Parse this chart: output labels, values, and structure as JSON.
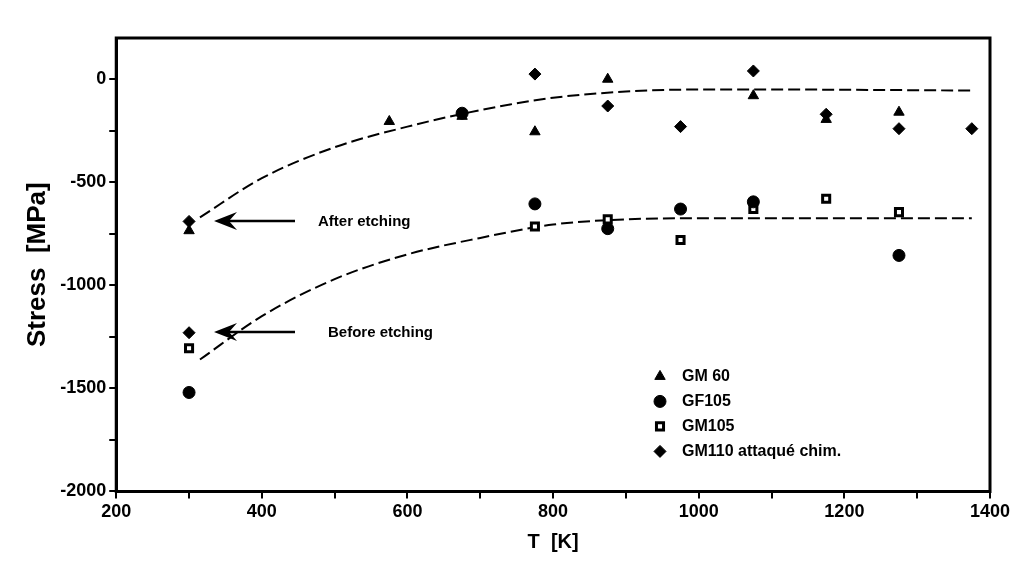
{
  "chart_data": {
    "type": "scatter",
    "xlabel": "T  [K]",
    "ylabel": "Stress  [MPa]",
    "xlim": [
      200,
      1400
    ],
    "xticks": [
      200,
      {
        "value": 300,
        "label": null
      },
      400,
      {
        "value": 500,
        "label": null
      },
      600,
      {
        "value": 700,
        "label": null
      },
      800,
      {
        "value": 900,
        "label": null
      },
      1000,
      {
        "value": 1100,
        "label": null
      },
      1200,
      {
        "value": 1300,
        "label": null
      },
      1400
    ],
    "ylim": [
      -2000,
      200
    ],
    "yticks": [
      -2000,
      {
        "value": -1750,
        "label": null
      },
      -1500,
      {
        "value": -1250,
        "label": null
      },
      -1000,
      {
        "value": -750,
        "label": null
      },
      -500,
      {
        "value": -250,
        "label": null
      },
      0
    ],
    "grid": false,
    "legend": "bottom right",
    "series": [
      {
        "name": "GM 60",
        "marker": "triangle",
        "color": "#000000",
        "x": [
          300,
          575,
          675,
          775,
          875,
          1075,
          1175,
          1275
        ],
        "values": [
          -735,
          -205,
          -180,
          -255,
          0,
          -80,
          -195,
          -160
        ]
      },
      {
        "name": "GF105",
        "marker": "circle",
        "color": "#000000",
        "x": [
          300,
          675,
          775,
          875,
          975,
          1075,
          1275
        ],
        "values": [
          -1520,
          -165,
          -605,
          -725,
          -630,
          -595,
          -855
        ]
      },
      {
        "name": "GM105",
        "marker": "square",
        "color": "#000000",
        "x": [
          300,
          775,
          875,
          975,
          1075,
          1175,
          1275
        ],
        "values": [
          -1305,
          -715,
          -680,
          -780,
          -630,
          -580,
          -645
        ]
      },
      {
        "name": "GM110 attaqué chim.",
        "marker": "diamond",
        "color": "#000000",
        "x": [
          300,
          300,
          775,
          875,
          975,
          1075,
          1175,
          1275,
          1375
        ],
        "values": [
          -690,
          -1230,
          25,
          -130,
          -230,
          40,
          -170,
          -240,
          -240
        ]
      },
      {
        "type": "line",
        "line_style": "dashed",
        "marker": "none",
        "color": "#000000",
        "x": [
          315,
          400,
          500,
          600,
          700,
          800,
          900,
          1000,
          1100,
          1375
        ],
        "values": [
          -670,
          -480,
          -330,
          -230,
          -150,
          -90,
          -60,
          -50,
          -50,
          -55
        ]
      },
      {
        "type": "line",
        "line_style": "dashed",
        "marker": "none",
        "color": "#000000",
        "x": [
          315,
          400,
          500,
          600,
          700,
          800,
          900,
          1000,
          1375
        ],
        "values": [
          -1360,
          -1150,
          -970,
          -850,
          -770,
          -705,
          -680,
          -675,
          -675
        ]
      }
    ],
    "annotations": [
      "After etching",
      "Before etching"
    ]
  }
}
